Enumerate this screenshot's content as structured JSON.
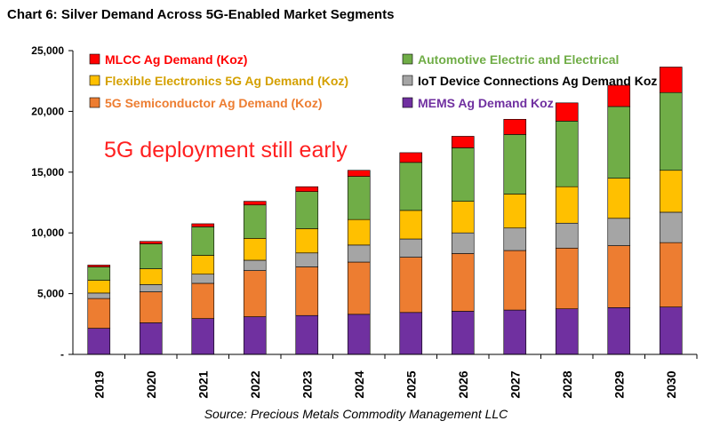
{
  "title": "Chart 6: Silver Demand Across 5G-Enabled Market Segments",
  "source": "Source: Precious Metals Commodity Management LLC",
  "chart_data": {
    "type": "bar",
    "stacked": true,
    "title": "Chart 6: Silver Demand Across 5G-Enabled Market Segments",
    "xlabel": "",
    "ylabel": "",
    "ylim": [
      0,
      25000
    ],
    "y_ticks": [
      "-",
      "5,000",
      "10,000",
      "15,000",
      "20,000",
      "25,000"
    ],
    "categories": [
      "2019",
      "2020",
      "2021",
      "2022",
      "2023",
      "2024",
      "2025",
      "2026",
      "2027",
      "2028",
      "2029",
      "2030"
    ],
    "annotation": "5G deployment still early",
    "series": [
      {
        "name": "MEMS Ag Demand Koz",
        "color": "#7030a0",
        "values": [
          2150,
          2600,
          2950,
          3100,
          3200,
          3300,
          3450,
          3550,
          3650,
          3750,
          3850,
          3900
        ]
      },
      {
        "name": "5G Semiconductor Ag Demand (Koz)",
        "color": "#ed7d31",
        "values": [
          2450,
          2550,
          2900,
          3800,
          4000,
          4300,
          4550,
          4750,
          4900,
          5000,
          5100,
          5300
        ]
      },
      {
        "name": "IoT Device Connections Ag Demand Koz",
        "color": "#a5a5a5",
        "values": [
          450,
          600,
          750,
          850,
          1150,
          1400,
          1500,
          1700,
          1850,
          2050,
          2250,
          2500
        ]
      },
      {
        "name": "Flexible Electronics 5G Ag Demand (Koz)",
        "color": "#ffc000",
        "values": [
          1050,
          1300,
          1550,
          1800,
          2000,
          2100,
          2350,
          2600,
          2800,
          3000,
          3300,
          3450
        ]
      },
      {
        "name": "Automotive Electric and Electrical",
        "color": "#70ad47",
        "values": [
          1100,
          2050,
          2350,
          2750,
          3050,
          3550,
          3950,
          4400,
          4900,
          5400,
          5900,
          6400
        ]
      },
      {
        "name": "MLCC Ag Demand (Koz)",
        "color": "#ff0000",
        "values": [
          150,
          200,
          250,
          300,
          400,
          500,
          800,
          950,
          1250,
          1500,
          1750,
          2100
        ]
      }
    ],
    "legend": [
      {
        "name": "MLCC Ag Demand (Koz)",
        "color": "#ff0000",
        "text_color": "#ff0000"
      },
      {
        "name": "Automotive Electric and Electrical",
        "color": "#70ad47",
        "text_color": "#70ad47"
      },
      {
        "name": "Flexible Electronics 5G Ag Demand (Koz)",
        "color": "#ffc000",
        "text_color": "#d4a000"
      },
      {
        "name": "IoT Device Connections Ag Demand Koz",
        "color": "#a5a5a5",
        "text_color": "#000000"
      },
      {
        "name": "5G Semiconductor Ag Demand (Koz)",
        "color": "#ed7d31",
        "text_color": "#ed7d31"
      },
      {
        "name": "MEMS Ag Demand Koz",
        "color": "#7030a0",
        "text_color": "#7030a0"
      }
    ],
    "legend_position": "top"
  }
}
